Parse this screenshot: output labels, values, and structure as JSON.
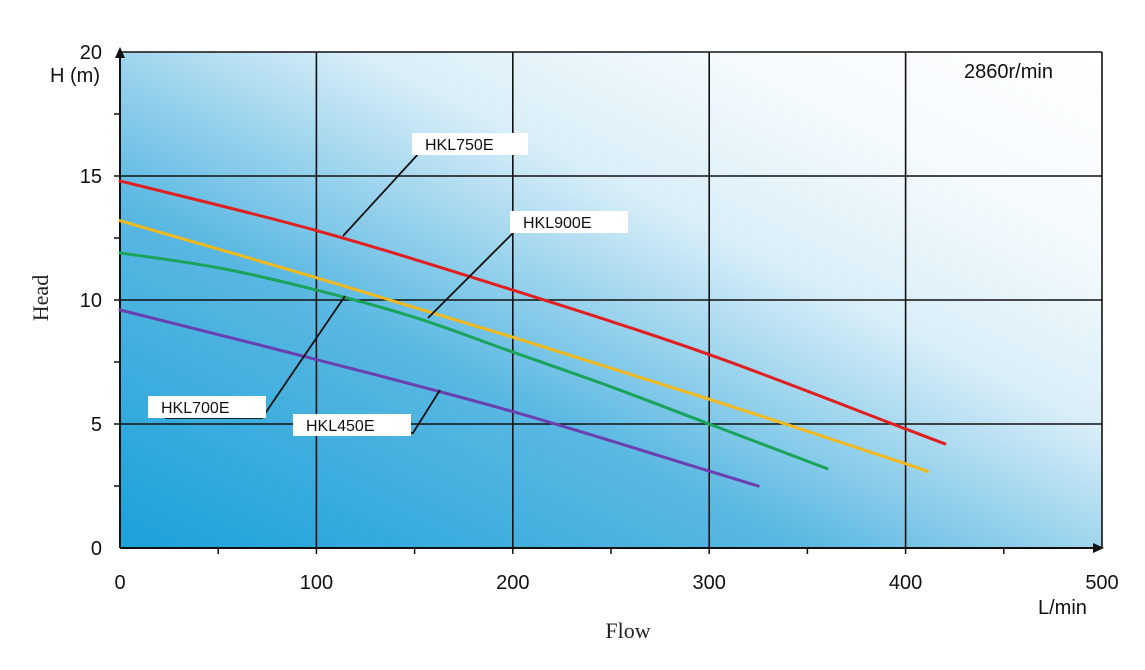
{
  "chart_data": {
    "type": "line",
    "xlabel": "Flow",
    "ylabel": "Head",
    "x_unit": "L/min",
    "y_unit": "H (m)",
    "annotation": "2860r/min",
    "xlim": [
      0,
      500
    ],
    "ylim": [
      0,
      20
    ],
    "x_ticks": [
      "0",
      "100",
      "200",
      "300",
      "400",
      "500"
    ],
    "y_ticks": [
      "0",
      "5",
      "10",
      "15",
      "20"
    ],
    "grid": true,
    "series": [
      {
        "name": "HKL750E",
        "color": "#e02020",
        "x": [
          0,
          100,
          200,
          300,
          400,
          420
        ],
        "y": [
          14.8,
          12.8,
          10.4,
          7.8,
          4.8,
          4.2
        ]
      },
      {
        "name": "HKL900E",
        "color": "#f2b81c",
        "x": [
          0,
          100,
          200,
          300,
          400,
          410
        ],
        "y": [
          13.2,
          10.9,
          8.5,
          6.0,
          3.4,
          3.1
        ]
      },
      {
        "name": "HKL700E",
        "color": "#1aa35a",
        "x": [
          0,
          50,
          100,
          150,
          200,
          250,
          300,
          360
        ],
        "y": [
          11.9,
          11.3,
          10.4,
          9.3,
          7.9,
          6.5,
          5.0,
          3.2
        ]
      },
      {
        "name": "HKL450E",
        "color": "#6a3fb0",
        "x": [
          0,
          100,
          200,
          300,
          325
        ],
        "y": [
          9.6,
          7.6,
          5.5,
          3.1,
          2.5
        ]
      }
    ]
  }
}
